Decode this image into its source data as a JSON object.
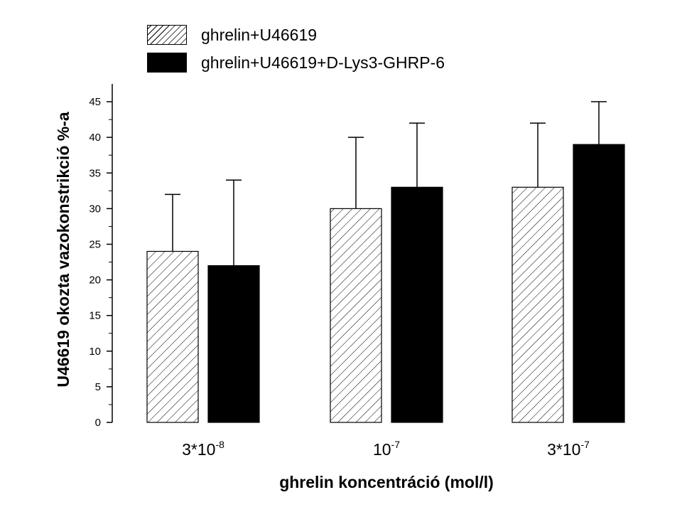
{
  "chart_data": {
    "type": "bar",
    "categories": [
      {
        "base": "3*10",
        "exp": "-8"
      },
      {
        "base": "10",
        "exp": "-7"
      },
      {
        "base": "3*10",
        "exp": "-7"
      }
    ],
    "series": [
      {
        "name": "ghrelin+U46619",
        "values": [
          24,
          30,
          33
        ],
        "error_upper": [
          32,
          40,
          42
        ],
        "fill": "hatched"
      },
      {
        "name": "ghrelin+U46619+D-Lys3-GHRP-6",
        "values": [
          22,
          33,
          39
        ],
        "error_upper": [
          34,
          42,
          45
        ],
        "fill": "solid"
      }
    ],
    "xlabel": "ghrelin koncentráció (mol/l)",
    "ylabel": "U46619 okozta vazokonstrikció %-a",
    "ylim": [
      0,
      47.5
    ],
    "yticks": [
      0,
      5,
      10,
      15,
      20,
      25,
      30,
      35,
      40,
      45
    ],
    "grid": false,
    "legend_position": "top-left",
    "colors": {
      "bar_solid": "#000000",
      "hatch": "#000000",
      "background": "#ffffff"
    }
  }
}
